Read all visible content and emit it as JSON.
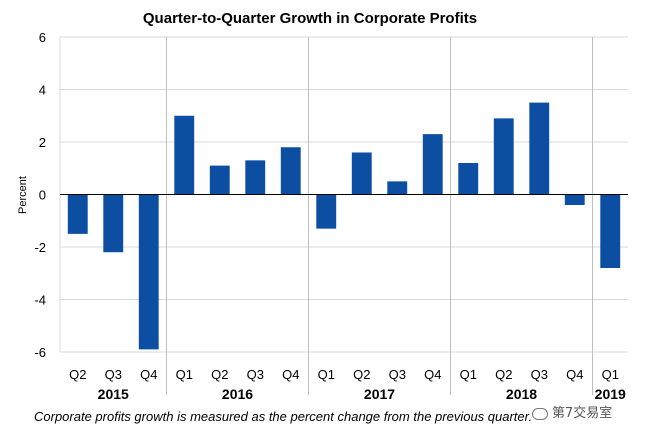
{
  "chart_data": {
    "type": "bar",
    "title": "Quarter-to-Quarter Growth in Corporate Profits",
    "ylabel": "Percent",
    "ylim": [
      -6,
      6
    ],
    "yticks": [
      "6",
      "4",
      "2",
      "0",
      "-2",
      "-4",
      "-6"
    ],
    "ytick_values": [
      6,
      4,
      2,
      0,
      -2,
      -4,
      -6
    ],
    "categories": [
      "Q2",
      "Q3",
      "Q4",
      "Q1",
      "Q2",
      "Q3",
      "Q4",
      "Q1",
      "Q2",
      "Q3",
      "Q4",
      "Q1",
      "Q2",
      "Q3",
      "Q4",
      "Q1"
    ],
    "values": [
      -1.5,
      -2.2,
      -5.9,
      3.0,
      1.1,
      1.3,
      1.8,
      -1.3,
      1.6,
      0.5,
      2.3,
      1.2,
      2.9,
      3.5,
      -0.4,
      -2.8
    ],
    "groups": [
      {
        "label": "2015",
        "start": 0,
        "count": 3
      },
      {
        "label": "2016",
        "start": 3,
        "count": 4
      },
      {
        "label": "2017",
        "start": 7,
        "count": 4
      },
      {
        "label": "2018",
        "start": 11,
        "count": 4
      },
      {
        "label": "2019",
        "start": 15,
        "count": 1
      }
    ],
    "bar_color": "#0B4EA2",
    "grid": true
  },
  "footnote": "Corporate profits growth is measured as the percent change from the previous quarter.",
  "watermark": "第7交易室"
}
